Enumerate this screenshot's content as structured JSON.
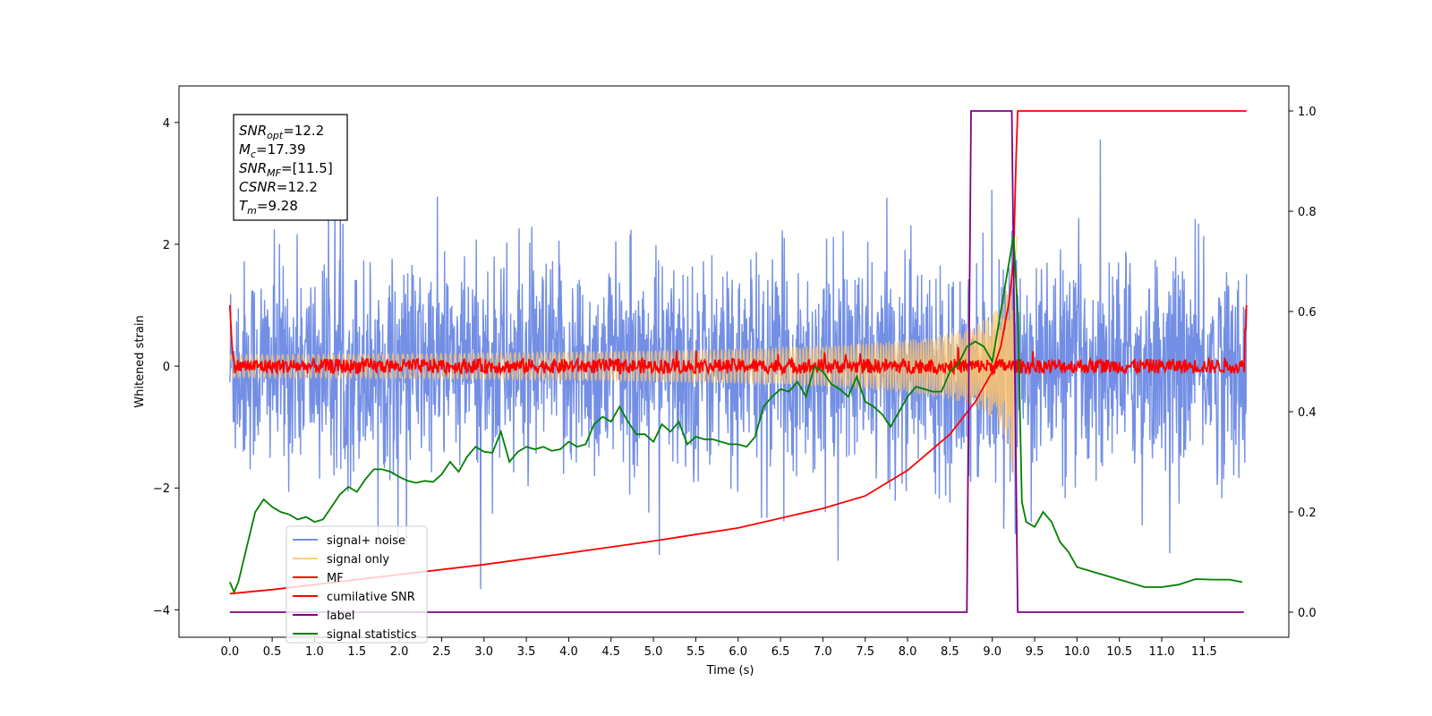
{
  "chart_data": {
    "type": "line",
    "xlabel": "Time (s)",
    "ylabel": "Whitened strain",
    "xlim": [
      -0.6,
      12.5
    ],
    "ylim": [
      -4.45,
      4.6
    ],
    "y2lim": [
      -0.05,
      1.05
    ],
    "x_ticks": [
      0.0,
      0.5,
      1.0,
      1.5,
      2.0,
      2.5,
      3.0,
      3.5,
      4.0,
      4.5,
      5.0,
      5.5,
      6.0,
      6.5,
      7.0,
      7.5,
      8.0,
      8.5,
      9.0,
      9.5,
      10.0,
      10.5,
      11.0,
      11.5
    ],
    "x_tick_labels": [
      "0.0",
      "0.5",
      "1.0",
      "1.5",
      "2.0",
      "2.5",
      "3.0",
      "3.5",
      "4.0",
      "4.5",
      "5.0",
      "5.5",
      "6.0",
      "6.5",
      "7.0",
      "7.5",
      "8.0",
      "8.5",
      "9.0",
      "9.5",
      "10.0",
      "10.5",
      "11.0",
      "11.5"
    ],
    "y_ticks": [
      -4,
      -2,
      0,
      2,
      4
    ],
    "y_tick_labels": [
      "−4",
      "−2",
      "0",
      "2",
      "4"
    ],
    "y2_ticks": [
      0.0,
      0.2,
      0.4,
      0.6,
      0.8,
      1.0
    ],
    "y2_tick_labels": [
      "0.0",
      "0.2",
      "0.4",
      "0.6",
      "0.8",
      "1.0"
    ],
    "legend_position": "lower-left",
    "annotation": {
      "lines": [
        {
          "main": "SNR",
          "sub": "opt",
          "rest": "=12.2"
        },
        {
          "main": "M",
          "sub": "c",
          "rest": "=17.39"
        },
        {
          "main": "SNR",
          "sub": "MF",
          "rest": "=[11.5]"
        },
        {
          "main": "CSNR",
          "sub": "",
          "rest": "=12.2"
        },
        {
          "main": "T",
          "sub": "m",
          "rest": "=9.28"
        }
      ]
    },
    "series": [
      {
        "name": "signal+ noise",
        "color": "#5b7be0",
        "axis": "left",
        "kind": "noise",
        "x_range": [
          0.0,
          12.0
        ],
        "mean": 0.0,
        "envelope": [
          -3.8,
          3.9
        ],
        "typical_band": [
          -2.0,
          2.2
        ]
      },
      {
        "name": "signal only",
        "color": "#ffc46b",
        "axis": "left",
        "kind": "chirp",
        "x_range": [
          0.0,
          9.3
        ],
        "peak_time": 9.28,
        "peak_amplitude": 2.3
      },
      {
        "name": "MF",
        "color": "#ff0000",
        "axis": "left",
        "kind": "mf",
        "x_range": [
          0.0,
          12.0
        ],
        "baseline": 0.0,
        "noise_amplitude": 0.12,
        "start_value": 1.0,
        "end_value": 1.0
      },
      {
        "name": "cumilative SNR",
        "color": "#ff0000",
        "axis": "right",
        "x": [
          0.0,
          0.5,
          1.0,
          2.0,
          3.0,
          4.0,
          5.0,
          6.0,
          7.0,
          7.5,
          8.0,
          8.5,
          8.8,
          9.0,
          9.1,
          9.2,
          9.25,
          9.28,
          9.3,
          12.0
        ],
        "y": [
          0.037,
          0.045,
          0.055,
          0.075,
          0.095,
          0.118,
          0.142,
          0.168,
          0.207,
          0.232,
          0.283,
          0.355,
          0.42,
          0.48,
          0.53,
          0.62,
          0.7,
          0.9,
          1.0,
          1.0
        ]
      },
      {
        "name": "label",
        "color": "#800080",
        "axis": "right",
        "x": [
          0.0,
          8.7,
          8.75,
          9.23,
          9.3,
          11.97
        ],
        "y": [
          0.0,
          0.0,
          1.0,
          1.0,
          0.0,
          0.0
        ]
      },
      {
        "name": "signal statistics",
        "color": "#008000",
        "axis": "right",
        "x": [
          0.0,
          0.05,
          0.1,
          0.2,
          0.3,
          0.4,
          0.5,
          0.6,
          0.7,
          0.8,
          0.9,
          1.0,
          1.1,
          1.2,
          1.3,
          1.4,
          1.5,
          1.6,
          1.7,
          1.8,
          1.9,
          2.0,
          2.1,
          2.2,
          2.3,
          2.4,
          2.5,
          2.6,
          2.7,
          2.8,
          2.9,
          3.0,
          3.1,
          3.2,
          3.3,
          3.4,
          3.5,
          3.6,
          3.7,
          3.8,
          3.9,
          4.0,
          4.1,
          4.2,
          4.3,
          4.4,
          4.5,
          4.6,
          4.7,
          4.8,
          4.9,
          5.0,
          5.1,
          5.2,
          5.3,
          5.4,
          5.5,
          5.6,
          5.7,
          5.8,
          5.9,
          6.0,
          6.1,
          6.2,
          6.3,
          6.4,
          6.5,
          6.6,
          6.7,
          6.8,
          6.9,
          7.0,
          7.1,
          7.2,
          7.3,
          7.4,
          7.5,
          7.6,
          7.7,
          7.8,
          7.9,
          8.0,
          8.1,
          8.2,
          8.3,
          8.4,
          8.5,
          8.6,
          8.7,
          8.8,
          8.9,
          9.0,
          9.1,
          9.2,
          9.25,
          9.3,
          9.35,
          9.4,
          9.5,
          9.6,
          9.7,
          9.8,
          9.9,
          10.0,
          10.2,
          10.4,
          10.6,
          10.8,
          11.0,
          11.2,
          11.4,
          11.6,
          11.8,
          11.95
        ],
        "y": [
          0.06,
          0.04,
          0.06,
          0.13,
          0.2,
          0.225,
          0.21,
          0.2,
          0.195,
          0.185,
          0.19,
          0.18,
          0.185,
          0.21,
          0.235,
          0.25,
          0.24,
          0.265,
          0.285,
          0.285,
          0.28,
          0.27,
          0.262,
          0.258,
          0.262,
          0.26,
          0.275,
          0.3,
          0.28,
          0.31,
          0.33,
          0.32,
          0.318,
          0.36,
          0.3,
          0.32,
          0.33,
          0.325,
          0.33,
          0.322,
          0.325,
          0.34,
          0.33,
          0.335,
          0.375,
          0.39,
          0.38,
          0.41,
          0.38,
          0.355,
          0.355,
          0.34,
          0.375,
          0.36,
          0.38,
          0.335,
          0.35,
          0.345,
          0.345,
          0.34,
          0.335,
          0.335,
          0.33,
          0.35,
          0.41,
          0.43,
          0.445,
          0.44,
          0.46,
          0.43,
          0.49,
          0.48,
          0.455,
          0.445,
          0.43,
          0.47,
          0.42,
          0.41,
          0.395,
          0.37,
          0.4,
          0.43,
          0.45,
          0.445,
          0.44,
          0.44,
          0.48,
          0.495,
          0.53,
          0.54,
          0.53,
          0.5,
          0.6,
          0.7,
          0.75,
          0.6,
          0.22,
          0.18,
          0.17,
          0.2,
          0.18,
          0.14,
          0.12,
          0.09,
          0.08,
          0.07,
          0.06,
          0.05,
          0.05,
          0.055,
          0.066,
          0.065,
          0.065,
          0.06
        ]
      }
    ]
  }
}
